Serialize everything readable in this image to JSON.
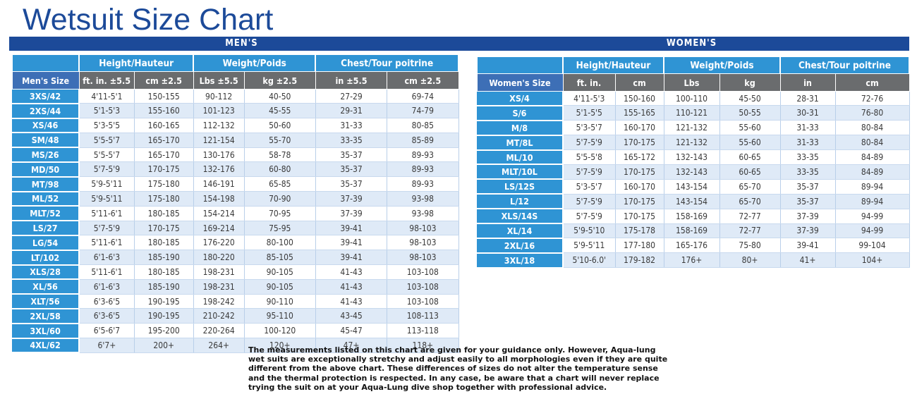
{
  "title": "Wetsuit Size Chart",
  "men": {
    "banner": "MEN'S",
    "groups": [
      "Height/Hauteur",
      "Weight/Poids",
      "Chest/Tour poitrine"
    ],
    "columns": [
      "Men's Size",
      "ft. in.  ±5.5",
      "cm  ±2.5",
      "Lbs  ±5.5",
      "kg  ±2.5",
      "in  ±5.5",
      "cm  ±2.5"
    ],
    "rows": [
      [
        "3XS/42",
        "4'11-5'1",
        "150-155",
        "90-112",
        "40-50",
        "27-29",
        "69-74"
      ],
      [
        "2XS/44",
        "5'1-5'3",
        "155-160",
        "101-123",
        "45-55",
        "29-31",
        "74-79"
      ],
      [
        "XS/46",
        "5'3-5'5",
        "160-165",
        "112-132",
        "50-60",
        "31-33",
        "80-85"
      ],
      [
        "SM/48",
        "5'5-5'7",
        "165-170",
        "121-154",
        "55-70",
        "33-35",
        "85-89"
      ],
      [
        "MS/26",
        "5'5-5'7",
        "165-170",
        "130-176",
        "58-78",
        "35-37",
        "89-93"
      ],
      [
        "MD/50",
        "5'7-5'9",
        "170-175",
        "132-176",
        "60-80",
        "35-37",
        "89-93"
      ],
      [
        "MT/98",
        "5'9-5'11",
        "175-180",
        "146-191",
        "65-85",
        "35-37",
        "89-93"
      ],
      [
        "ML/52",
        "5'9-5'11",
        "175-180",
        "154-198",
        "70-90",
        "37-39",
        "93-98"
      ],
      [
        "MLT/52",
        "5'11-6'1",
        "180-185",
        "154-214",
        "70-95",
        "37-39",
        "93-98"
      ],
      [
        "LS/27",
        "5'7-5'9",
        "170-175",
        "169-214",
        "75-95",
        "39-41",
        "98-103"
      ],
      [
        "LG/54",
        "5'11-6'1",
        "180-185",
        "176-220",
        "80-100",
        "39-41",
        "98-103"
      ],
      [
        "LT/102",
        "6'1-6'3",
        "185-190",
        "180-220",
        "85-105",
        "39-41",
        "98-103"
      ],
      [
        "XLS/28",
        "5'11-6'1",
        "180-185",
        "198-231",
        "90-105",
        "41-43",
        "103-108"
      ],
      [
        "XL/56",
        "6'1-6'3",
        "185-190",
        "198-231",
        "90-105",
        "41-43",
        "103-108"
      ],
      [
        "XLT/56",
        "6'3-6'5",
        "190-195",
        "198-242",
        "90-110",
        "41-43",
        "103-108"
      ],
      [
        "2XL/58",
        "6'3-6'5",
        "190-195",
        "210-242",
        "95-110",
        "43-45",
        "108-113"
      ],
      [
        "3XL/60",
        "6'5-6'7",
        "195-200",
        "220-264",
        "100-120",
        "45-47",
        "113-118"
      ],
      [
        "4XL/62",
        "6'7+",
        "200+",
        "264+",
        "120+",
        "47+",
        "118+"
      ]
    ]
  },
  "women": {
    "banner": "WOMEN'S",
    "groups": [
      "Height/Hauteur",
      "Weight/Poids",
      "Chest/Tour poitrine"
    ],
    "columns": [
      "Women's Size",
      "ft. in.",
      "cm",
      "Lbs",
      "kg",
      "in",
      "cm"
    ],
    "rows": [
      [
        "XS/4",
        "4'11-5'3",
        "150-160",
        "100-110",
        "45-50",
        "28-31",
        "72-76"
      ],
      [
        "S/6",
        "5'1-5'5",
        "155-165",
        "110-121",
        "50-55",
        "30-31",
        "76-80"
      ],
      [
        "M/8",
        "5'3-5'7",
        "160-170",
        "121-132",
        "55-60",
        "31-33",
        "80-84"
      ],
      [
        "MT/8L",
        "5'7-5'9",
        "170-175",
        "121-132",
        "55-60",
        "31-33",
        "80-84"
      ],
      [
        "ML/10",
        "5'5-5'8",
        "165-172",
        "132-143",
        "60-65",
        "33-35",
        "84-89"
      ],
      [
        "MLT/10L",
        "5'7-5'9",
        "170-175",
        "132-143",
        "60-65",
        "33-35",
        "84-89"
      ],
      [
        "LS/12S",
        "5'3-5'7",
        "160-170",
        "143-154",
        "65-70",
        "35-37",
        "89-94"
      ],
      [
        "L/12",
        "5'7-5'9",
        "170-175",
        "143-154",
        "65-70",
        "35-37",
        "89-94"
      ],
      [
        "XLS/14S",
        "5'7-5'9",
        "170-175",
        "158-169",
        "72-77",
        "37-39",
        "94-99"
      ],
      [
        "XL/14",
        "5'9-5'10",
        "175-178",
        "158-169",
        "72-77",
        "37-39",
        "94-99"
      ],
      [
        "2XL/16",
        "5'9-5'11",
        "177-180",
        "165-176",
        "75-80",
        "39-41",
        "99-104"
      ],
      [
        "3XL/18",
        "5'10-6.0'",
        "179-182",
        "176+",
        "80+",
        "41+",
        "104+"
      ]
    ]
  },
  "disclaimer": [
    "The measurements listed on this chart are given for your guidance only. However, Aqua-lung",
    "wet suits are exceptionally stretchy and adjust easily to all morphologies even if they are quite",
    "different from the above chart. These differences of sizes do not alter the temperature sense",
    "and the thermal protection is respected. In any case, be aware that a chart will never replace",
    "trying the suit on at your Aqua-Lung dive shop together with professional advice."
  ]
}
